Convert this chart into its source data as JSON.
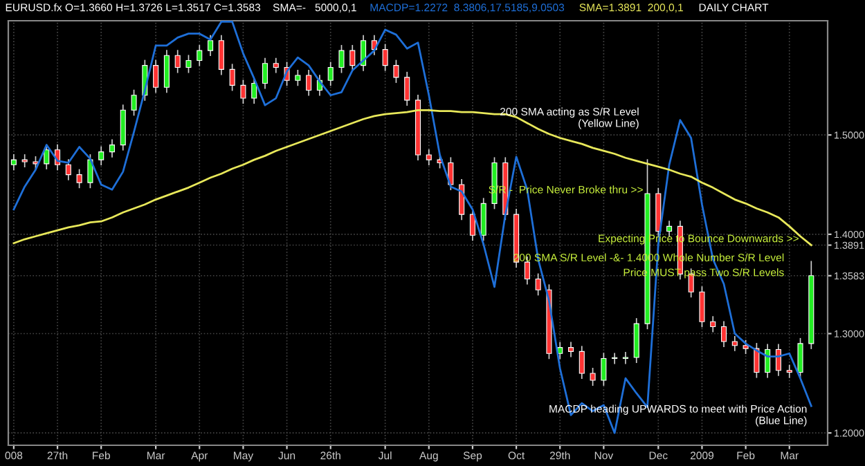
{
  "chart_data": {
    "type": "candlestick",
    "title": "EURUSD.fx O=1.3660 H=1.3726 L=1.3517 C=1.3583    SMA=-   5000,0,1",
    "subtitle": "DAILY CHART",
    "categories": [
      "008",
      null,
      null,
      null,
      "27th",
      null,
      null,
      null,
      "Feb",
      null,
      null,
      null,
      null,
      "Mar",
      null,
      null,
      null,
      "Apr",
      null,
      null,
      null,
      "May",
      null,
      null,
      null,
      "Jun",
      null,
      null,
      null,
      "26th",
      null,
      null,
      null,
      null,
      "Jul",
      null,
      null,
      null,
      "Aug",
      null,
      null,
      null,
      "Sep",
      null,
      null,
      null,
      "Oct",
      null,
      null,
      null,
      "29th",
      null,
      null,
      null,
      "Nov",
      null,
      null,
      null,
      null,
      "Dec",
      null,
      null,
      null,
      "2009",
      null,
      null,
      null,
      "Feb",
      null,
      null,
      null,
      "Mar",
      null,
      null
    ],
    "ohlc": [
      [
        1.47,
        1.48,
        1.465,
        1.475
      ],
      [
        1.475,
        1.48,
        1.468,
        1.473
      ],
      [
        1.473,
        1.478,
        1.466,
        1.471
      ],
      [
        1.471,
        1.49,
        1.466,
        1.485
      ],
      [
        1.485,
        1.49,
        1.465,
        1.47
      ],
      [
        1.47,
        1.475,
        1.455,
        1.46
      ],
      [
        1.46,
        1.465,
        1.447,
        1.452
      ],
      [
        1.452,
        1.48,
        1.447,
        1.475
      ],
      [
        1.475,
        1.488,
        1.47,
        1.483
      ],
      [
        1.483,
        1.495,
        1.478,
        1.49
      ],
      [
        1.49,
        1.53,
        1.485,
        1.525
      ],
      [
        1.525,
        1.545,
        1.52,
        1.54
      ],
      [
        1.54,
        1.575,
        1.535,
        1.57
      ],
      [
        1.57,
        1.575,
        1.543,
        1.548
      ],
      [
        1.548,
        1.585,
        1.543,
        1.58
      ],
      [
        1.58,
        1.585,
        1.563,
        1.568
      ],
      [
        1.568,
        1.58,
        1.563,
        1.575
      ],
      [
        1.575,
        1.59,
        1.57,
        1.585
      ],
      [
        1.585,
        1.6,
        1.58,
        1.595
      ],
      [
        1.595,
        1.6,
        1.561,
        1.566
      ],
      [
        1.566,
        1.571,
        1.545,
        1.55
      ],
      [
        1.55,
        1.555,
        1.532,
        1.537
      ],
      [
        1.537,
        1.557,
        1.532,
        1.552
      ],
      [
        1.552,
        1.577,
        1.547,
        1.572
      ],
      [
        1.572,
        1.577,
        1.563,
        1.568
      ],
      [
        1.568,
        1.573,
        1.55,
        1.555
      ],
      [
        1.555,
        1.565,
        1.55,
        1.56
      ],
      [
        1.56,
        1.565,
        1.54,
        1.545
      ],
      [
        1.545,
        1.56,
        1.54,
        1.555
      ],
      [
        1.555,
        1.573,
        1.55,
        1.568
      ],
      [
        1.568,
        1.59,
        1.563,
        1.585
      ],
      [
        1.585,
        1.59,
        1.565,
        1.57
      ],
      [
        1.57,
        1.6,
        1.565,
        1.595
      ],
      [
        1.595,
        1.6,
        1.581,
        1.586
      ],
      [
        1.586,
        1.591,
        1.565,
        1.57
      ],
      [
        1.57,
        1.575,
        1.553,
        1.558
      ],
      [
        1.558,
        1.563,
        1.53,
        1.535
      ],
      [
        1.535,
        1.54,
        1.475,
        1.48
      ],
      [
        1.48,
        1.485,
        1.47,
        1.475
      ],
      [
        1.475,
        1.48,
        1.467,
        1.472
      ],
      [
        1.472,
        1.477,
        1.445,
        1.45
      ],
      [
        1.45,
        1.455,
        1.415,
        1.42
      ],
      [
        1.42,
        1.425,
        1.394,
        1.399
      ],
      [
        1.399,
        1.436,
        1.394,
        1.431
      ],
      [
        1.431,
        1.477,
        1.426,
        1.472
      ],
      [
        1.472,
        1.477,
        1.415,
        1.42
      ],
      [
        1.42,
        1.425,
        1.367,
        1.372
      ],
      [
        1.372,
        1.377,
        1.35,
        1.355
      ],
      [
        1.355,
        1.36,
        1.339,
        1.344
      ],
      [
        1.344,
        1.349,
        1.275,
        1.28
      ],
      [
        1.28,
        1.291,
        1.275,
        1.286
      ],
      [
        1.286,
        1.291,
        1.277,
        1.282
      ],
      [
        1.282,
        1.287,
        1.255,
        1.26
      ],
      [
        1.26,
        1.265,
        1.248,
        1.253
      ],
      [
        1.253,
        1.28,
        1.248,
        1.275
      ],
      [
        1.275,
        1.28,
        1.27,
        1.275
      ],
      [
        1.275,
        1.281,
        1.27,
        1.276
      ],
      [
        1.276,
        1.315,
        1.271,
        1.31
      ],
      [
        1.31,
        1.475,
        1.305,
        1.441
      ],
      [
        1.441,
        1.446,
        1.398,
        1.403
      ],
      [
        1.403,
        1.413,
        1.398,
        1.408
      ],
      [
        1.408,
        1.413,
        1.355,
        1.36
      ],
      [
        1.36,
        1.365,
        1.337,
        1.342
      ],
      [
        1.342,
        1.347,
        1.307,
        1.312
      ],
      [
        1.312,
        1.317,
        1.302,
        1.307
      ],
      [
        1.307,
        1.312,
        1.287,
        1.292
      ],
      [
        1.292,
        1.297,
        1.283,
        1.288
      ],
      [
        1.288,
        1.293,
        1.28,
        1.285
      ],
      [
        1.285,
        1.29,
        1.256,
        1.261
      ],
      [
        1.261,
        1.289,
        1.256,
        1.284
      ],
      [
        1.284,
        1.289,
        1.258,
        1.263
      ],
      [
        1.263,
        1.268,
        1.256,
        1.261
      ],
      [
        1.261,
        1.295,
        1.256,
        1.29
      ],
      [
        1.29,
        1.3726,
        1.285,
        1.3583
      ]
    ],
    "series": [
      {
        "type": "line",
        "name": "MACDP=1.2272  8.3806,17.5185,9.0503",
        "color": "#1e6fd8",
        "values": [
          1.425,
          1.448,
          1.465,
          1.49,
          1.474,
          1.472,
          1.488,
          1.476,
          1.45,
          1.445,
          1.463,
          1.503,
          1.545,
          1.59,
          1.59,
          1.598,
          1.602,
          1.602,
          1.596,
          1.614,
          1.614,
          1.582,
          1.557,
          1.53,
          1.537,
          1.564,
          1.578,
          1.57,
          1.554,
          1.54,
          1.543,
          1.565,
          1.575,
          1.585,
          1.606,
          1.601,
          1.587,
          1.593,
          1.54,
          1.48,
          1.448,
          1.443,
          1.425,
          1.39,
          1.347,
          1.42,
          1.478,
          1.445,
          1.375,
          1.333,
          1.265,
          1.218,
          1.23,
          1.222,
          1.228,
          1.2,
          1.255,
          1.24,
          1.226,
          1.39,
          1.47,
          1.515,
          1.497,
          1.43,
          1.375,
          1.35,
          1.3,
          1.29,
          1.283,
          1.277,
          1.277,
          1.28,
          1.255,
          1.2272
        ]
      },
      {
        "type": "line",
        "name": "SMA=1.3891  200,0,1",
        "color": "#e8e85a",
        "values": [
          1.391,
          1.395,
          1.398,
          1.401,
          1.404,
          1.407,
          1.409,
          1.412,
          1.413,
          1.417,
          1.422,
          1.426,
          1.43,
          1.435,
          1.439,
          1.443,
          1.447,
          1.452,
          1.457,
          1.461,
          1.466,
          1.47,
          1.475,
          1.479,
          1.484,
          1.488,
          1.492,
          1.496,
          1.5,
          1.504,
          1.508,
          1.512,
          1.516,
          1.519,
          1.521,
          1.522,
          1.523,
          1.525,
          1.525,
          1.524,
          1.524,
          1.523,
          1.523,
          1.522,
          1.521,
          1.521,
          1.518,
          1.512,
          1.506,
          1.501,
          1.497,
          1.494,
          1.491,
          1.487,
          1.484,
          1.481,
          1.477,
          1.474,
          1.471,
          1.468,
          1.465,
          1.461,
          1.458,
          1.452,
          1.447,
          1.441,
          1.435,
          1.431,
          1.426,
          1.422,
          1.417,
          1.408,
          1.398,
          1.3891
        ]
      }
    ],
    "ylim": [
      1.1876,
      1.615
    ],
    "yticks": [
      {
        "value": 1.2,
        "label": "1.2000"
      },
      {
        "value": 1.3,
        "label": "1.3000"
      },
      1.3583,
      1.3891,
      {
        "value": 1.4,
        "label": "1.4000"
      },
      {
        "value": 1.5,
        "label": "1.5000"
      }
    ],
    "grid": true,
    "annotations": [
      "200 SMA acting as S/R Level\n(Yellow Line)",
      "S/R -  Price Never Broke thru >>",
      "Expecting Price to Bounce Downwards >>",
      "200 SMA S/R Level -&- 1.4000 Whole Number S/R Level",
      "Price MUST pass Two S/R Levels",
      "MACDP heading UPWARDS to meet with Price Action\n(Blue Line)"
    ]
  }
}
